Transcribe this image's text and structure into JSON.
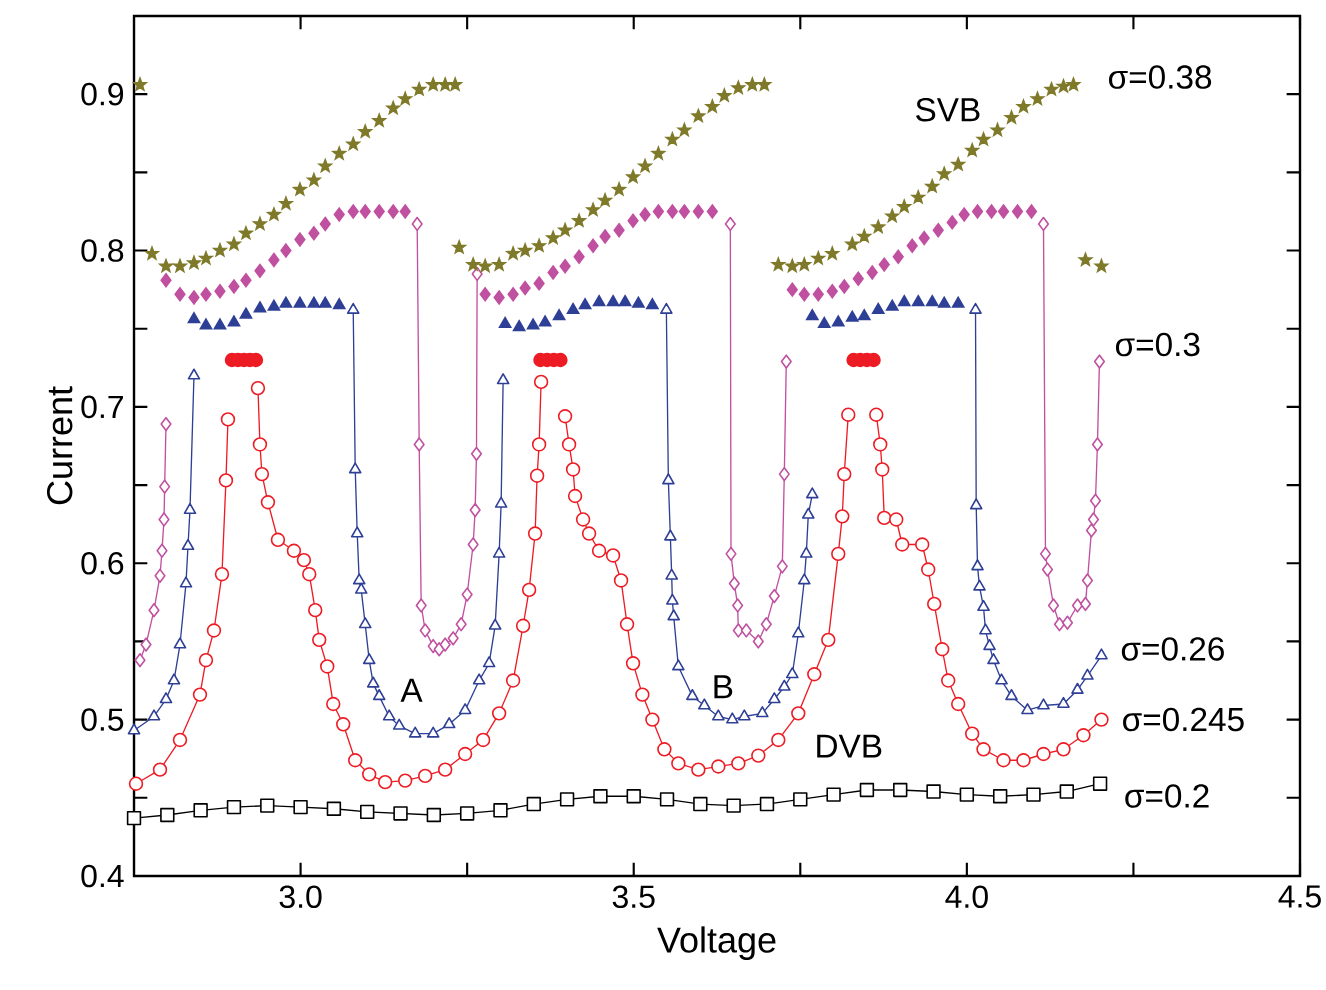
{
  "chart_data": {
    "type": "line",
    "xlabel": "Voltage",
    "ylabel": "Current",
    "xlim": [
      2.75,
      4.5
    ],
    "ylim": [
      0.4,
      0.95
    ],
    "xticks": [
      {
        "value": 3,
        "label": "3.0"
      },
      {
        "value": 3.25,
        "label": null
      },
      {
        "value": 3.5,
        "label": "3.5"
      },
      {
        "value": 3.75,
        "label": null
      },
      {
        "value": 4,
        "label": "4.0"
      },
      {
        "value": 4.25,
        "label": null
      },
      {
        "value": 4.5,
        "label": "4.5"
      }
    ],
    "yticks": [
      {
        "value": 0.4,
        "label": "0.4"
      },
      {
        "value": 0.45,
        "label": null
      },
      {
        "value": 0.5,
        "label": "0.5"
      },
      {
        "value": 0.55,
        "label": null
      },
      {
        "value": 0.6,
        "label": "0.6"
      },
      {
        "value": 0.65,
        "label": null
      },
      {
        "value": 0.7,
        "label": "0.7"
      },
      {
        "value": 0.75,
        "label": null
      },
      {
        "value": 0.8,
        "label": "0.8"
      },
      {
        "value": 0.85,
        "label": null
      },
      {
        "value": 0.9,
        "label": "0.9"
      }
    ],
    "series": [
      {
        "type": "line",
        "marker": "square",
        "color": "#000000",
        "x": [
          2.75,
          2.8,
          2.85,
          2.9,
          2.95,
          3.0,
          3.05,
          3.1,
          3.15,
          3.2,
          3.25,
          3.3,
          3.35,
          3.4,
          3.45,
          3.5,
          3.55,
          3.6,
          3.65,
          3.7,
          3.75,
          3.8,
          3.85,
          3.9,
          3.95,
          4.0,
          4.05,
          4.1,
          4.15,
          4.2
        ],
        "values": [
          0.437,
          0.439,
          0.442,
          0.444,
          0.445,
          0.444,
          0.443,
          0.441,
          0.44,
          0.439,
          0.44,
          0.442,
          0.446,
          0.449,
          0.451,
          0.451,
          0.449,
          0.446,
          0.445,
          0.446,
          0.449,
          0.452,
          0.455,
          0.455,
          0.454,
          0.452,
          0.451,
          0.452,
          0.454,
          0.459
        ]
      },
      {
        "type": "line",
        "marker": "circle",
        "color": "#ed1c24",
        "x": [
          2.753,
          2.789,
          2.819,
          2.849,
          2.858,
          2.87,
          2.882,
          2.888,
          2.891,
          2.915,
          2.936,
          2.939,
          2.942,
          2.951,
          2.966,
          2.99,
          3.005,
          3.013,
          3.022,
          3.028,
          3.04,
          3.049,
          3.064,
          3.082,
          3.103,
          3.127,
          3.157,
          3.187,
          3.217,
          3.247,
          3.274,
          3.298,
          3.319,
          3.334,
          3.343,
          3.352,
          3.355,
          3.358,
          3.361,
          3.38,
          3.397,
          3.403,
          3.409,
          3.412,
          3.424,
          3.433,
          3.448,
          3.469,
          3.481,
          3.49,
          3.499,
          3.513,
          3.528,
          3.546,
          3.567,
          3.597,
          3.627,
          3.657,
          3.687,
          3.717,
          3.747,
          3.771,
          3.792,
          3.807,
          3.813,
          3.816,
          3.822,
          3.845,
          3.864,
          3.87,
          3.873,
          3.876,
          3.894,
          3.903,
          3.933,
          3.942,
          3.951,
          3.963,
          3.972,
          3.987,
          4.008,
          4.025,
          4.055,
          4.085,
          4.115,
          4.145,
          4.175,
          4.202
        ],
        "values": [
          0.459,
          0.468,
          0.487,
          0.516,
          0.538,
          0.557,
          0.593,
          0.653,
          0.692,
          null,
          0.712,
          0.676,
          0.657,
          0.639,
          0.615,
          0.608,
          0.602,
          0.593,
          0.57,
          0.551,
          0.534,
          0.51,
          0.497,
          0.474,
          0.465,
          0.46,
          0.461,
          0.464,
          0.468,
          0.478,
          0.487,
          0.504,
          0.525,
          0.56,
          0.583,
          0.619,
          0.656,
          0.676,
          0.716,
          null,
          0.694,
          0.676,
          0.66,
          0.643,
          0.628,
          0.619,
          0.608,
          0.605,
          0.589,
          0.561,
          0.536,
          0.516,
          0.5,
          0.481,
          0.472,
          0.468,
          0.47,
          0.472,
          0.477,
          0.487,
          0.504,
          0.529,
          0.551,
          0.606,
          0.63,
          0.657,
          0.695,
          null,
          0.695,
          0.676,
          0.66,
          0.629,
          0.628,
          0.612,
          0.612,
          0.596,
          0.574,
          0.545,
          0.525,
          0.51,
          0.491,
          0.481,
          0.474,
          0.474,
          0.478,
          0.481,
          0.49,
          0.5
        ]
      },
      {
        "type": "scatter",
        "marker": "circle",
        "color": "#ed1c24",
        "x": [
          2.897,
          2.906,
          2.915,
          2.924,
          2.933,
          3.36,
          3.37,
          3.38,
          3.39,
          3.83,
          3.84,
          3.85,
          3.86
        ],
        "values": [
          0.73,
          0.73,
          0.73,
          0.73,
          0.73,
          0.73,
          0.73,
          0.73,
          0.73,
          0.73,
          0.73,
          0.73,
          0.73
        ]
      },
      {
        "type": "line",
        "marker": "triangle",
        "color": "#2e3f96",
        "x": [
          2.75,
          2.78,
          2.798,
          2.81,
          2.819,
          2.828,
          2.831,
          2.834,
          2.84,
          2.96,
          3.079,
          3.082,
          3.085,
          3.088,
          3.091,
          3.097,
          3.103,
          3.109,
          3.118,
          3.133,
          3.148,
          3.172,
          3.199,
          3.223,
          3.247,
          3.268,
          3.283,
          3.292,
          3.298,
          3.301,
          3.304,
          3.43,
          3.549,
          3.552,
          3.555,
          3.557,
          3.558,
          3.56,
          3.567,
          3.588,
          3.606,
          3.627,
          3.648,
          3.666,
          3.693,
          3.711,
          3.726,
          3.738,
          3.747,
          3.756,
          3.759,
          3.762,
          3.768,
          3.89,
          4.013,
          4.014,
          4.016,
          4.019,
          4.025,
          4.028,
          4.034,
          4.04,
          4.052,
          4.067,
          4.091,
          4.115,
          4.145,
          4.166,
          4.181,
          4.202
        ],
        "values": [
          0.493,
          0.502,
          0.513,
          0.525,
          0.548,
          0.587,
          0.611,
          0.634,
          0.72,
          null,
          0.762,
          0.66,
          0.619,
          0.589,
          0.583,
          0.561,
          0.538,
          0.523,
          0.515,
          0.502,
          0.496,
          0.491,
          0.491,
          0.497,
          0.506,
          0.525,
          0.536,
          0.56,
          0.606,
          0.638,
          0.717,
          null,
          0.762,
          0.653,
          0.617,
          0.592,
          0.576,
          0.566,
          0.534,
          0.515,
          0.509,
          0.502,
          0.5,
          0.502,
          0.504,
          0.513,
          0.521,
          0.529,
          0.555,
          0.589,
          0.606,
          0.631,
          0.644,
          null,
          0.762,
          0.637,
          0.598,
          0.585,
          0.572,
          0.557,
          0.547,
          0.538,
          0.525,
          0.515,
          0.506,
          0.509,
          0.51,
          0.519,
          0.528,
          0.541
        ]
      },
      {
        "type": "scatter",
        "marker": "triangle",
        "color": "#2e3f96",
        "x": [
          2.84,
          2.858,
          2.879,
          2.9,
          2.918,
          2.939,
          2.96,
          2.978,
          2.999,
          3.02,
          3.037,
          3.058,
          3.307,
          3.328,
          3.349,
          3.367,
          3.388,
          3.409,
          3.427,
          3.448,
          3.469,
          3.487,
          3.507,
          3.528,
          3.768,
          3.786,
          3.807,
          3.828,
          3.846,
          3.867,
          3.888,
          3.906,
          3.927,
          3.948,
          3.966,
          3.987
        ],
        "values": [
          0.756,
          0.752,
          0.752,
          0.754,
          0.759,
          0.763,
          0.764,
          0.766,
          0.766,
          0.766,
          0.766,
          0.765,
          0.753,
          0.751,
          0.752,
          0.754,
          0.758,
          0.762,
          0.765,
          0.767,
          0.767,
          0.767,
          0.766,
          0.765,
          0.758,
          0.753,
          0.754,
          0.757,
          0.758,
          0.762,
          0.764,
          0.767,
          0.767,
          0.767,
          0.766,
          0.766
        ]
      },
      {
        "type": "line",
        "marker": "diamond",
        "color": "#c050a0",
        "x": [
          2.759,
          2.768,
          2.78,
          2.789,
          2.792,
          2.795,
          2.796,
          2.798,
          2.99,
          3.175,
          3.178,
          3.181,
          3.187,
          3.199,
          3.208,
          3.217,
          3.229,
          3.241,
          3.25,
          3.259,
          3.262,
          3.264,
          3.265,
          3.45,
          3.645,
          3.646,
          3.651,
          3.656,
          3.657,
          3.669,
          3.687,
          3.699,
          3.711,
          3.723,
          3.726,
          3.729,
          3.92,
          4.115,
          4.118,
          4.121,
          4.13,
          4.139,
          4.151,
          4.166,
          4.178,
          4.181,
          4.187,
          4.19,
          4.193,
          4.196,
          4.199
        ],
        "values": [
          0.538,
          0.548,
          0.57,
          0.592,
          0.608,
          0.628,
          0.649,
          0.689,
          null,
          0.817,
          0.676,
          0.573,
          0.557,
          0.547,
          0.545,
          0.548,
          0.552,
          0.561,
          0.58,
          0.612,
          0.634,
          0.67,
          0.785,
          null,
          0.817,
          0.606,
          0.587,
          0.573,
          0.557,
          0.557,
          0.55,
          0.561,
          0.579,
          0.598,
          0.657,
          0.729,
          null,
          0.817,
          0.606,
          0.596,
          0.573,
          0.561,
          0.562,
          0.573,
          0.574,
          0.589,
          0.621,
          0.628,
          0.64,
          0.676,
          0.729
        ]
      },
      {
        "type": "scatter",
        "marker": "diamond",
        "color": "#c050a0",
        "x": [
          2.798,
          2.819,
          2.84,
          2.858,
          2.879,
          2.9,
          2.918,
          2.939,
          2.96,
          2.978,
          2.999,
          3.02,
          3.037,
          3.058,
          3.079,
          3.097,
          3.118,
          3.139,
          3.157,
          3.277,
          3.298,
          3.319,
          3.337,
          3.358,
          3.379,
          3.397,
          3.418,
          3.439,
          3.457,
          3.478,
          3.499,
          3.517,
          3.537,
          3.558,
          3.576,
          3.597,
          3.618,
          3.738,
          3.756,
          3.777,
          3.798,
          3.816,
          3.837,
          3.858,
          3.876,
          3.897,
          3.918,
          3.936,
          3.957,
          3.978,
          3.996,
          4.016,
          4.037,
          4.055,
          4.076,
          4.097
        ],
        "values": [
          0.781,
          0.772,
          0.77,
          0.772,
          0.774,
          0.777,
          0.781,
          0.787,
          0.794,
          0.8,
          0.807,
          0.811,
          0.817,
          0.823,
          0.825,
          0.825,
          0.825,
          0.825,
          0.825,
          0.772,
          0.77,
          0.772,
          0.776,
          0.779,
          0.786,
          0.79,
          0.796,
          0.803,
          0.809,
          0.813,
          0.819,
          0.823,
          0.825,
          0.825,
          0.825,
          0.825,
          0.825,
          0.775,
          0.772,
          0.772,
          0.774,
          0.777,
          0.782,
          0.786,
          0.791,
          0.796,
          0.803,
          0.808,
          0.813,
          0.818,
          0.823,
          0.825,
          0.825,
          0.825,
          0.825,
          0.825
        ]
      },
      {
        "type": "scatter",
        "marker": "star",
        "color": "#7f7a2a",
        "x": [
          2.759,
          2.777,
          2.798,
          2.819,
          2.84,
          2.858,
          2.879,
          2.9,
          2.918,
          2.939,
          2.96,
          2.978,
          2.999,
          3.02,
          3.037,
          3.058,
          3.079,
          3.097,
          3.118,
          3.139,
          3.157,
          3.178,
          3.199,
          3.217,
          3.232,
          3.238,
          3.259,
          3.277,
          3.298,
          3.319,
          3.337,
          3.358,
          3.379,
          3.397,
          3.418,
          3.439,
          3.457,
          3.478,
          3.499,
          3.517,
          3.537,
          3.558,
          3.576,
          3.597,
          3.618,
          3.636,
          3.657,
          3.678,
          3.696,
          3.717,
          3.738,
          3.756,
          3.777,
          3.798,
          3.828,
          3.846,
          3.867,
          3.888,
          3.906,
          3.927,
          3.948,
          3.966,
          3.987,
          4.008,
          4.025,
          4.046,
          4.067,
          4.085,
          4.106,
          4.127,
          4.145,
          4.16,
          4.178,
          4.202
        ],
        "values": [
          0.906,
          0.798,
          0.79,
          0.79,
          0.792,
          0.795,
          0.8,
          0.804,
          0.811,
          0.817,
          0.823,
          0.83,
          0.839,
          0.845,
          0.854,
          0.862,
          0.868,
          0.876,
          0.883,
          0.891,
          0.897,
          0.903,
          0.906,
          0.906,
          0.906,
          0.802,
          0.791,
          0.79,
          0.791,
          0.798,
          0.8,
          0.803,
          0.808,
          0.813,
          0.819,
          0.826,
          0.832,
          0.839,
          0.847,
          0.854,
          0.862,
          0.871,
          0.877,
          0.886,
          0.892,
          0.899,
          0.904,
          0.906,
          0.906,
          0.791,
          0.79,
          0.791,
          0.795,
          0.798,
          0.804,
          0.809,
          0.815,
          0.822,
          0.828,
          0.834,
          0.841,
          0.849,
          0.855,
          0.864,
          0.871,
          0.877,
          0.885,
          0.892,
          0.897,
          0.903,
          0.905,
          0.906,
          0.794,
          0.79
        ]
      }
    ],
    "annotations": [
      "σ=0.38",
      "σ=0.3",
      "σ=0.26",
      "σ=0.245",
      "σ=0.2",
      "SVB",
      "A",
      "B",
      "DVB"
    ]
  }
}
